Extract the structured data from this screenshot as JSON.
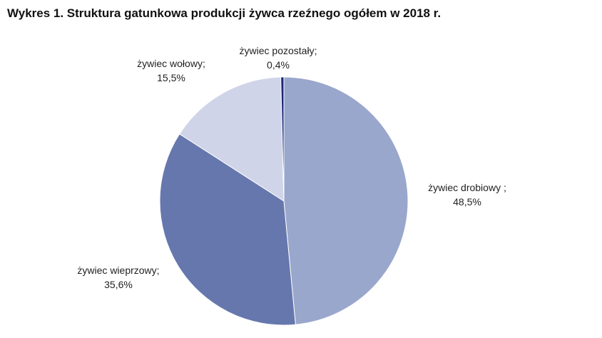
{
  "title": "Wykres 1.  Struktura gatunkowa produkcji żywca rzeźnego ogółem w 2018 r.",
  "chart_data": {
    "type": "pie",
    "title": "Wykres 1.  Struktura gatunkowa produkcji żywca rzeźnego ogółem w 2018 r.",
    "legend": "none",
    "slices": [
      {
        "name": "żywiec drobiowy ;",
        "value": 48.5,
        "label": "48,5%",
        "color": "#9aa7cc"
      },
      {
        "name": "żywiec wieprzowy;",
        "value": 35.6,
        "label": "35,6%",
        "color": "#6677ad"
      },
      {
        "name": "żywiec wołowy;",
        "value": 15.5,
        "label": "15,5%",
        "color": "#cfd4e8"
      },
      {
        "name": "żywiec pozostały;",
        "value": 0.4,
        "label": "0,4%",
        "color": "#1a2a7a"
      }
    ]
  }
}
